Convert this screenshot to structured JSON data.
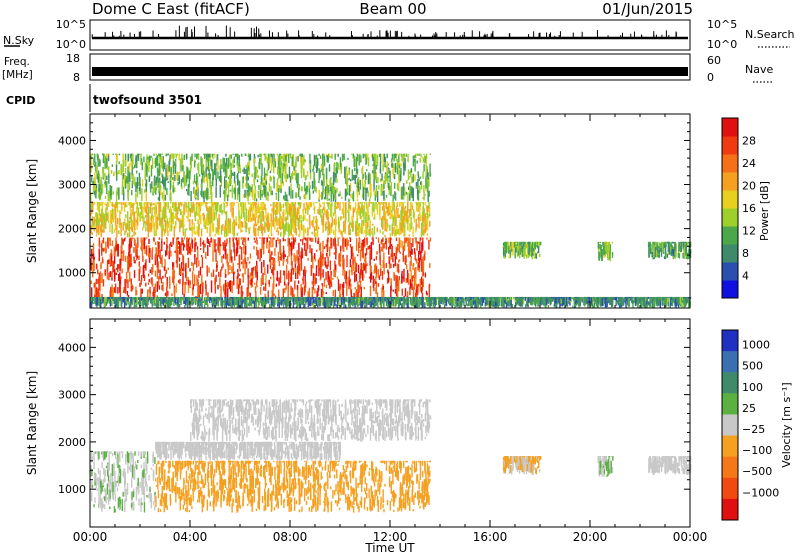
{
  "header": {
    "station": "Dome C East (fitACF)",
    "beam": "Beam 00",
    "date": "01/Jun/2015"
  },
  "strip_labels": {
    "nsky": "N.Sky",
    "nsearch": "N.Search",
    "freq_line1": "Freq.",
    "freq_line2": "[MHz]",
    "nave": "Nave",
    "cpid": "CPID"
  },
  "nsky_ticks": {
    "left_top": "10^5",
    "left_bottom": "10^0",
    "right_top": "10^5",
    "right_bottom": "10^0"
  },
  "freq_ticks": {
    "left_top": "18",
    "left_bottom": "8",
    "right_top": "60",
    "right_bottom": "0"
  },
  "cpid_value": "twofsound 3501",
  "power_colorbar": {
    "label": "Power [dB]",
    "ticks": [
      "28",
      "24",
      "20",
      "16",
      "12",
      "8",
      "4"
    ]
  },
  "velocity_colorbar": {
    "label": "Velocity [m s⁻¹]",
    "ticks": [
      "1000",
      "500",
      "100",
      "25",
      "−25",
      "−100",
      "−500",
      "−1000"
    ]
  },
  "chart_data": [
    {
      "type": "heatmap",
      "title": "Power",
      "xlabel": "",
      "ylabel": "Slant Range [km]",
      "ylim": [
        200,
        4600
      ],
      "x_ticks": [
        "00:00",
        "04:00",
        "08:00",
        "12:00",
        "16:00",
        "20:00",
        "00:00"
      ],
      "y_ticks": [
        "1000",
        "2000",
        "3000",
        "4000"
      ],
      "colorbar_range": [
        0,
        32
      ],
      "colors": [
        "#1010e0",
        "#2a4fb0",
        "#3f8a6a",
        "#4aa84a",
        "#9ecf2a",
        "#e8d020",
        "#f5a020",
        "#f57018",
        "#f03a10",
        "#e01010"
      ],
      "regions": [
        {
          "t_start": 0.0,
          "t_end": 13.6,
          "range_low": 350,
          "range_high": 1800,
          "power_db": 28
        },
        {
          "t_start": 0.0,
          "t_end": 13.6,
          "range_low": 1800,
          "range_high": 2600,
          "power_db": 18
        },
        {
          "t_start": 0.0,
          "t_end": 13.6,
          "range_low": 2600,
          "range_high": 3700,
          "power_db": 12
        },
        {
          "t_start": 16.5,
          "t_end": 18.0,
          "range_low": 1300,
          "range_high": 1700,
          "power_db": 12
        },
        {
          "t_start": 20.3,
          "t_end": 20.9,
          "range_low": 1250,
          "range_high": 1700,
          "power_db": 12
        },
        {
          "t_start": 22.3,
          "t_end": 24.0,
          "range_low": 1300,
          "range_high": 1700,
          "power_db": 10
        },
        {
          "t_start": 0.0,
          "t_end": 24.0,
          "range_low": 200,
          "range_high": 450,
          "power_db": 8
        }
      ]
    },
    {
      "type": "heatmap",
      "title": "Velocity",
      "xlabel": "Time UT",
      "ylabel": "Slant Range [km]",
      "ylim": [
        200,
        4600
      ],
      "x_ticks": [
        "00:00",
        "04:00",
        "08:00",
        "12:00",
        "16:00",
        "20:00",
        "00:00"
      ],
      "y_ticks": [
        "1000",
        "2000",
        "3000",
        "4000"
      ],
      "colorbar_range": [
        -1000,
        1000
      ],
      "colors": [
        "#2030c0",
        "#3a6fb0",
        "#3f8a6a",
        "#5ab040",
        "#c8c8c8",
        "#f5a020",
        "#f57818",
        "#f04a10",
        "#e01010"
      ],
      "regions": [
        {
          "t_start": 0.0,
          "t_end": 2.6,
          "range_low": 500,
          "range_high": 1800,
          "velocity": 100
        },
        {
          "t_start": 2.6,
          "t_end": 13.6,
          "range_low": 500,
          "range_high": 1600,
          "velocity": -300
        },
        {
          "t_start": 2.6,
          "t_end": 10.0,
          "range_low": 1600,
          "range_high": 2000,
          "velocity": 0
        },
        {
          "t_start": 4.0,
          "t_end": 13.6,
          "range_low": 2000,
          "range_high": 2900,
          "velocity": 0
        },
        {
          "t_start": 16.5,
          "t_end": 18.0,
          "range_low": 1300,
          "range_high": 1700,
          "velocity": -150
        },
        {
          "t_start": 20.3,
          "t_end": 20.9,
          "range_low": 1250,
          "range_high": 1700,
          "velocity": 100
        },
        {
          "t_start": 22.3,
          "t_end": 24.0,
          "range_low": 1300,
          "range_high": 1700,
          "velocity": 50
        }
      ]
    }
  ]
}
